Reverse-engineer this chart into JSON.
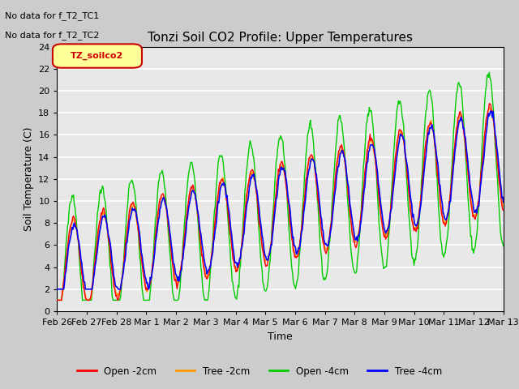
{
  "title": "Tonzi Soil CO2 Profile: Upper Temperatures",
  "ylabel": "Soil Temperature (C)",
  "xlabel": "Time",
  "annotations": [
    "No data for f_T2_TC1",
    "No data for f_T2_TC2"
  ],
  "legend_label": "TZ_soilco2",
  "legend_bg": "#FFFF99",
  "legend_border": "#CC0000",
  "ylim": [
    0,
    24
  ],
  "yticks": [
    0,
    2,
    4,
    6,
    8,
    10,
    12,
    14,
    16,
    18,
    20,
    22,
    24
  ],
  "x_labels": [
    "Feb 26",
    "Feb 27",
    "Feb 28",
    "Mar 1",
    "Mar 2",
    "Mar 3",
    "Mar 4",
    "Mar 5",
    "Mar 6",
    "Mar 7",
    "Mar 8",
    "Mar 9",
    "Mar 10",
    "Mar 11",
    "Mar 12",
    "Mar 13"
  ],
  "colors": {
    "open_2cm": "#FF0000",
    "tree_2cm": "#FF9900",
    "open_4cm": "#00CC00",
    "tree_4cm": "#0000FF"
  },
  "line_labels": [
    "Open -2cm",
    "Tree -2cm",
    "Open -4cm",
    "Tree -4cm"
  ],
  "fig_bg": "#CCCCCC",
  "plot_bg": "#E8E8E8",
  "grid_color": "#FFFFFF",
  "n_points": 600
}
